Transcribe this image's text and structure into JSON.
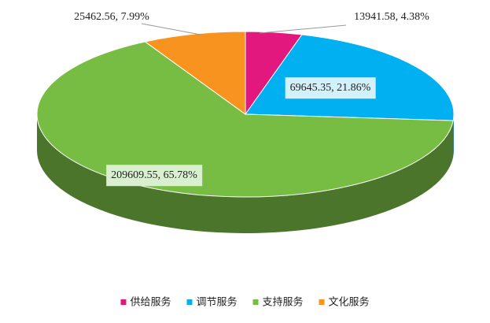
{
  "chart_data": {
    "type": "pie3d",
    "categories": [
      "供给服务",
      "调节服务",
      "支持服务",
      "文化服务"
    ],
    "values": [
      13941.58,
      69645.35,
      209609.55,
      25462.56
    ],
    "value_labels": [
      "13941.58, 4.38%",
      "69645.35, 21.86%",
      "209609.55, 65.78%",
      "25462.56, 7.99%"
    ],
    "colors": [
      "#e2187f",
      "#00b0f0",
      "#77bd43",
      "#f7931e"
    ],
    "legend": "bottom"
  }
}
